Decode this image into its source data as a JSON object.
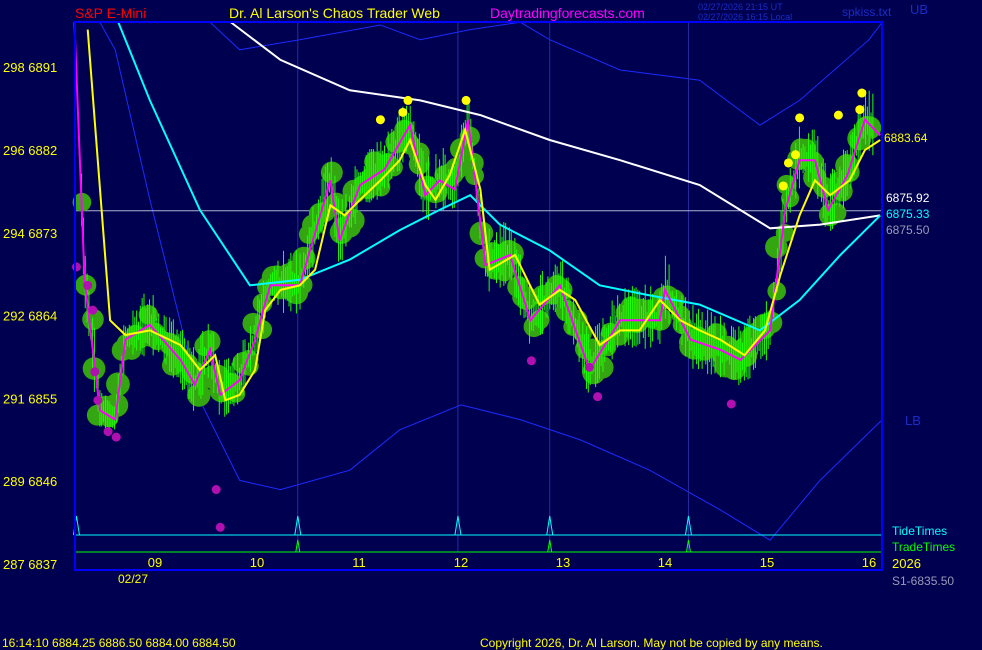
{
  "header": {
    "instrument": "S&P E-Mini",
    "title": "Dr. Al Larson's Chaos Trader Web",
    "site": "Daytradingforecasts.com",
    "time_ut": "02/27/2026 21:15 UT",
    "time_local": "02/27/2026 16:15 Local",
    "file": "spkiss.txt",
    "ub_label": "UB"
  },
  "footer": {
    "quote": "16:14:10  6884.25 6886.50 6884.00 6884.50",
    "copyright": "Copyright 2026, Dr. Al Larson. May not be copied by any means."
  },
  "colors": {
    "background": "#000050",
    "frame": "#0000ff",
    "price_fast": "#ff00ff",
    "price_smooth": "#ffff00",
    "ma_cyan": "#00ffff",
    "ma_white": "#ffffff",
    "bands": "#1a2cff",
    "blobs": "#33a612",
    "ticks": "#22ff00"
  },
  "chart_data": {
    "type": "line",
    "xlabel": "",
    "ylabel": "",
    "date_label": "02/27",
    "year_label": "2026",
    "x_ticks": [
      {
        "value": 9,
        "label": "09"
      },
      {
        "value": 10,
        "label": "10"
      },
      {
        "value": 11,
        "label": "11"
      },
      {
        "value": 12,
        "label": "12"
      },
      {
        "value": 13,
        "label": "13"
      },
      {
        "value": 14,
        "label": "14"
      },
      {
        "value": 15,
        "label": "15"
      },
      {
        "value": 16,
        "label": "16"
      }
    ],
    "y_ticks": [
      {
        "value": 6891,
        "label": "298  6891"
      },
      {
        "value": 6882,
        "label": "296  6882"
      },
      {
        "value": 6873,
        "label": "294  6873"
      },
      {
        "value": 6864,
        "label": "292  6864"
      },
      {
        "value": 6855,
        "label": "291  6855"
      },
      {
        "value": 6846,
        "label": "289  6846"
      },
      {
        "value": 6837,
        "label": "287  6837"
      }
    ],
    "xlim": [
      8.2,
      16.15
    ],
    "ylim": [
      6837,
      6896.5
    ],
    "series": [
      {
        "key": "fast",
        "points": [
          [
            8.21,
            6896
          ],
          [
            8.31,
            6868
          ],
          [
            8.46,
            6853.8
          ],
          [
            8.61,
            6852.8
          ],
          [
            8.71,
            6861.5
          ],
          [
            8.95,
            6863.1
          ],
          [
            9.25,
            6859.3
          ],
          [
            9.39,
            6856.6
          ],
          [
            9.54,
            6860.4
          ],
          [
            9.64,
            6855.5
          ],
          [
            9.83,
            6857.1
          ],
          [
            9.98,
            6861.5
          ],
          [
            10.13,
            6867.4
          ],
          [
            10.42,
            6867.4
          ],
          [
            10.72,
            6878.8
          ],
          [
            10.81,
            6872.3
          ],
          [
            11.01,
            6878.3
          ],
          [
            11.25,
            6880
          ],
          [
            11.5,
            6884.8
          ],
          [
            11.65,
            6877.2
          ],
          [
            11.79,
            6878.8
          ],
          [
            11.94,
            6877.8
          ],
          [
            12.07,
            6885.4
          ],
          [
            12.24,
            6869.6
          ],
          [
            12.48,
            6870.7
          ],
          [
            12.68,
            6863.6
          ],
          [
            12.97,
            6867.4
          ],
          [
            13.26,
            6858.2
          ],
          [
            13.56,
            6863.6
          ],
          [
            13.95,
            6863.6
          ],
          [
            14.0,
            6866.9
          ],
          [
            14.25,
            6861.5
          ],
          [
            14.54,
            6860.4
          ],
          [
            14.74,
            6859.3
          ],
          [
            15.03,
            6862.5
          ],
          [
            15.18,
            6875.6
          ],
          [
            15.32,
            6881
          ],
          [
            15.47,
            6881
          ],
          [
            15.6,
            6875.6
          ],
          [
            15.79,
            6879.4
          ],
          [
            15.96,
            6885.4
          ],
          [
            16.11,
            6883.7
          ]
        ]
      },
      {
        "key": "smooth",
        "points": [
          [
            8.34,
            6895.2
          ],
          [
            8.56,
            6863.6
          ],
          [
            8.71,
            6862
          ],
          [
            8.95,
            6862.5
          ],
          [
            9.25,
            6860.9
          ],
          [
            9.44,
            6858.2
          ],
          [
            9.59,
            6859.8
          ],
          [
            9.69,
            6854.9
          ],
          [
            9.83,
            6855.5
          ],
          [
            9.98,
            6858.2
          ],
          [
            10.08,
            6864.7
          ],
          [
            10.23,
            6866.9
          ],
          [
            10.42,
            6867.4
          ],
          [
            10.57,
            6869.1
          ],
          [
            10.72,
            6876.1
          ],
          [
            10.86,
            6875
          ],
          [
            11.01,
            6876.7
          ],
          [
            11.21,
            6878.8
          ],
          [
            11.4,
            6881
          ],
          [
            11.5,
            6883.2
          ],
          [
            11.65,
            6878.3
          ],
          [
            11.75,
            6876.7
          ],
          [
            11.89,
            6879.4
          ],
          [
            12.04,
            6884.3
          ],
          [
            12.19,
            6877.8
          ],
          [
            12.28,
            6869.1
          ],
          [
            12.53,
            6870.7
          ],
          [
            12.77,
            6865.3
          ],
          [
            12.97,
            6866.9
          ],
          [
            13.12,
            6865.8
          ],
          [
            13.36,
            6860.9
          ],
          [
            13.56,
            6862.5
          ],
          [
            13.75,
            6862.5
          ],
          [
            13.95,
            6865.8
          ],
          [
            14.15,
            6863.6
          ],
          [
            14.34,
            6862.5
          ],
          [
            14.54,
            6861.5
          ],
          [
            14.78,
            6859.8
          ],
          [
            14.98,
            6862.5
          ],
          [
            15.13,
            6868.5
          ],
          [
            15.32,
            6875
          ],
          [
            15.47,
            6878.8
          ],
          [
            15.62,
            6877.2
          ],
          [
            15.81,
            6878.8
          ],
          [
            15.96,
            6882.1
          ],
          [
            16.11,
            6883.2
          ]
        ]
      },
      {
        "key": "ma_cyan",
        "points": [
          [
            8.64,
            6896
          ],
          [
            8.95,
            6887.5
          ],
          [
            9.44,
            6875.6
          ],
          [
            9.93,
            6867.4
          ],
          [
            10.42,
            6868
          ],
          [
            10.91,
            6870.2
          ],
          [
            11.4,
            6873.4
          ],
          [
            11.79,
            6875.6
          ],
          [
            12.09,
            6877.2
          ],
          [
            12.38,
            6874
          ],
          [
            12.87,
            6871.2
          ],
          [
            13.36,
            6867.4
          ],
          [
            13.85,
            6866.3
          ],
          [
            14.34,
            6865.3
          ],
          [
            14.93,
            6862.5
          ],
          [
            15.32,
            6865.8
          ],
          [
            15.72,
            6870.7
          ],
          [
            16.11,
            6875
          ]
        ]
      },
      {
        "key": "ma_white",
        "points": [
          [
            9.74,
            6896.2
          ],
          [
            10.23,
            6891.9
          ],
          [
            10.91,
            6888.6
          ],
          [
            11.6,
            6887.5
          ],
          [
            12.19,
            6885.9
          ],
          [
            12.87,
            6883.2
          ],
          [
            13.56,
            6881
          ],
          [
            14.34,
            6878.3
          ],
          [
            15.03,
            6873.6
          ],
          [
            15.52,
            6874
          ],
          [
            16.11,
            6875
          ]
        ]
      },
      {
        "key": "upper_band",
        "points": [
          [
            9.54,
            6896
          ],
          [
            9.83,
            6893
          ],
          [
            10.42,
            6894.1
          ],
          [
            11.21,
            6895.7
          ],
          [
            11.6,
            6894.1
          ],
          [
            12.09,
            6895.2
          ],
          [
            12.58,
            6896
          ],
          [
            12.87,
            6894.1
          ],
          [
            13.56,
            6890.8
          ],
          [
            14.34,
            6889.7
          ],
          [
            14.93,
            6884.8
          ],
          [
            15.32,
            6887.5
          ],
          [
            16.0,
            6894.1
          ],
          [
            16.13,
            6896
          ]
        ]
      },
      {
        "key": "lower_band",
        "points": [
          [
            8.46,
            6896
          ],
          [
            8.61,
            6893
          ],
          [
            8.95,
            6876.7
          ],
          [
            9.44,
            6854.9
          ],
          [
            9.83,
            6846.2
          ],
          [
            10.23,
            6845.2
          ],
          [
            10.91,
            6847.3
          ],
          [
            11.4,
            6851.7
          ],
          [
            12.0,
            6854.4
          ],
          [
            12.58,
            6852.8
          ],
          [
            13.17,
            6850.6
          ],
          [
            13.85,
            6847.3
          ],
          [
            14.54,
            6843
          ],
          [
            15.03,
            6839.7
          ],
          [
            15.52,
            6846.2
          ],
          [
            16.13,
            6852.8
          ]
        ]
      }
    ],
    "high_markers": [
      [
        11.21,
        6885.4
      ],
      [
        11.43,
        6886.2
      ],
      [
        11.48,
        6887.5
      ],
      [
        12.05,
        6887.5
      ],
      [
        15.16,
        6878.2
      ],
      [
        15.21,
        6880.7
      ],
      [
        15.28,
        6881.6
      ],
      [
        15.32,
        6885.6
      ],
      [
        15.7,
        6885.9
      ],
      [
        15.93,
        6888.3
      ],
      [
        15.91,
        6886.5
      ]
    ],
    "low_markers": [
      [
        8.23,
        6869.4
      ],
      [
        8.34,
        6867.4
      ],
      [
        8.39,
        6864.7
      ],
      [
        8.41,
        6858
      ],
      [
        8.44,
        6854.9
      ],
      [
        8.54,
        6851.5
      ],
      [
        8.62,
        6850.9
      ],
      [
        9.6,
        6845.2
      ],
      [
        9.64,
        6841.1
      ],
      [
        12.69,
        6859.2
      ],
      [
        13.26,
        6858.5
      ],
      [
        13.34,
        6855.3
      ],
      [
        14.65,
        6854.5
      ]
    ],
    "horizontal_line": 6875.5,
    "tide_times": [
      8.23,
      10.4,
      11.97,
      12.87,
      14.23
    ],
    "trade_times": [
      10.4,
      12.87,
      14.23
    ],
    "tide_label": "TideTimes",
    "trade_label": "TradeTimes",
    "right_labels": {
      "last_smooth": "6883.64",
      "white_ma": "6875.92",
      "cyan_ma": "6875.33",
      "line": "6875.50",
      "lb": "LB",
      "s1": "S1-6835.50"
    }
  }
}
